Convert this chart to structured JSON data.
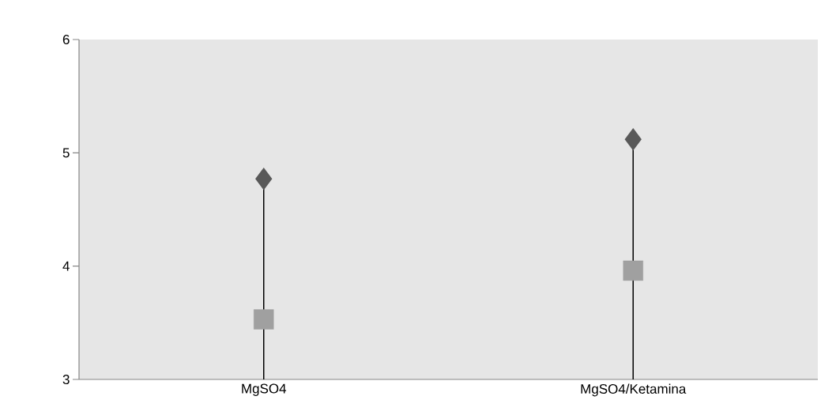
{
  "chart_data": {
    "type": "lollipop",
    "categories": [
      "MgSO4",
      "MgSO4/Ketamina"
    ],
    "ylim": [
      3,
      6
    ],
    "yticks": [
      3,
      4,
      5,
      6
    ],
    "series": [
      {
        "marker": "diamond",
        "color": "#595959",
        "values": [
          4.77,
          5.12
        ]
      },
      {
        "type": "scatter",
        "marker": "square",
        "color": "#a0a0a0",
        "values": [
          3.53,
          3.96
        ]
      }
    ]
  }
}
